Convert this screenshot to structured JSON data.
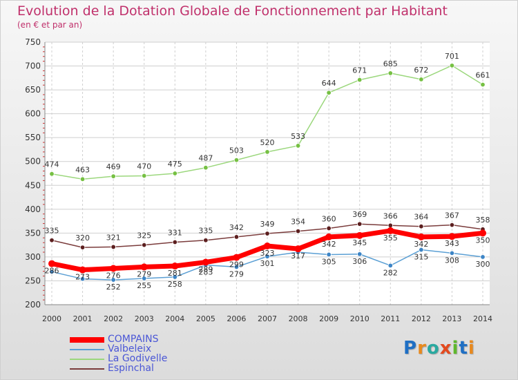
{
  "title": "Evolution de la Dotation Globale de Fonctionnement par Habitant",
  "subtitle": "(en € et par an)",
  "logo": {
    "text": "Proxiti",
    "letters": [
      {
        "ch": "P",
        "color": "#1f6fc4"
      },
      {
        "ch": "r",
        "color": "#e8891e"
      },
      {
        "ch": "o",
        "color": "#2aa9a0"
      },
      {
        "ch": "x",
        "color": "#e34a1f"
      },
      {
        "ch": "i",
        "color": "#5fb82d"
      },
      {
        "ch": "t",
        "color": "#1f6fc4"
      },
      {
        "ch": "i",
        "color": "#e8891e"
      }
    ]
  },
  "chart_data": {
    "type": "line",
    "x": [
      2000,
      2001,
      2002,
      2003,
      2004,
      2005,
      2006,
      2007,
      2008,
      2009,
      2010,
      2011,
      2012,
      2013,
      2014
    ],
    "ylim": [
      200,
      750
    ],
    "yticks": [
      200,
      250,
      300,
      350,
      400,
      450,
      500,
      550,
      600,
      650,
      700,
      750
    ],
    "grid": true,
    "legend_position": "bottom-left",
    "series": [
      {
        "name": "Valbeleix",
        "color": "#5a9fd4",
        "marker": "#3d85c6",
        "values": [
          269,
          254,
          252,
          255,
          258,
          283,
          279,
          301,
          310,
          305,
          306,
          282,
          315,
          308,
          300
        ],
        "labels": [
          "",
          "",
          "252",
          "255",
          "258",
          "283",
          "279",
          "301",
          "",
          "305",
          "306",
          "282",
          "315",
          "308",
          "300"
        ]
      },
      {
        "name": "La Godivelle",
        "color": "#9bd77c",
        "marker": "#76c043",
        "values": [
          474,
          463,
          469,
          470,
          475,
          487,
          503,
          520,
          533,
          644,
          671,
          685,
          672,
          701,
          661
        ],
        "labels": [
          "474",
          "463",
          "469",
          "470",
          "475",
          "487",
          "503",
          "520",
          "533",
          "644",
          "671",
          "685",
          "672",
          "701",
          "661"
        ]
      },
      {
        "name": "Espinchal",
        "color": "#7a3b3b",
        "marker": "#5c1f1f",
        "values": [
          335,
          320,
          321,
          325,
          331,
          335,
          342,
          349,
          354,
          360,
          369,
          366,
          364,
          367,
          358
        ],
        "labels": [
          "335",
          "320",
          "321",
          "325",
          "331",
          "335",
          "342",
          "349",
          "354",
          "360",
          "369",
          "366",
          "364",
          "367",
          "358"
        ]
      },
      {
        "name": "COMPAINS",
        "color": "#ff0000",
        "marker": "#ff0000",
        "values": [
          286,
          273,
          276,
          279,
          281,
          289,
          299,
          323,
          317,
          342,
          345,
          355,
          342,
          343,
          350
        ],
        "labels": [
          "286",
          "273",
          "276",
          "279",
          "281",
          "289",
          "299",
          "323",
          "317",
          "342",
          "345",
          "355",
          "342",
          "343",
          "350"
        ]
      }
    ],
    "legend": [
      {
        "name": "COMPAINS",
        "color": "#ff0000"
      },
      {
        "name": "Valbeleix",
        "color": "#5a9fd4"
      },
      {
        "name": "La Godivelle",
        "color": "#9bd77c"
      },
      {
        "name": "Espinchal",
        "color": "#7a3b3b"
      }
    ]
  }
}
